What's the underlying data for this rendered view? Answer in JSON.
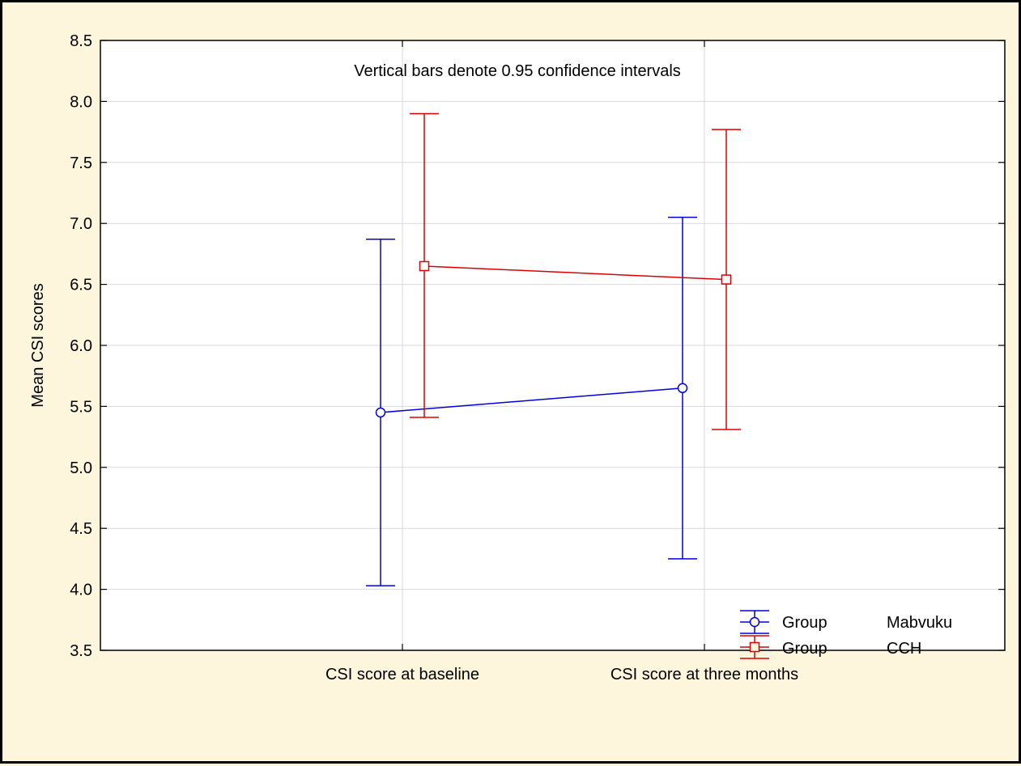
{
  "chart_data": {
    "type": "line",
    "title": "",
    "annotation": "Vertical bars denote 0.95 confidence intervals",
    "xlabel": "",
    "ylabel": "Mean CSI scores",
    "categories": [
      "CSI score at baseline",
      "CSI score at three months"
    ],
    "ylim": [
      3.5,
      8.5
    ],
    "yticks": [
      "3.5",
      "4.0",
      "4.5",
      "5.0",
      "5.5",
      "6.0",
      "6.5",
      "7.0",
      "7.5",
      "8.0",
      "8.5"
    ],
    "grid": true,
    "legend_position": "bottom-right",
    "series": [
      {
        "legend_label": "Group",
        "legend_value": "Mabvuku",
        "marker": "circle",
        "color": "#0000dd",
        "values": [
          5.45,
          5.65
        ],
        "ci_low": [
          4.03,
          4.25
        ],
        "ci_high": [
          6.87,
          7.05
        ]
      },
      {
        "legend_label": "Group",
        "legend_value": "CCH",
        "marker": "square",
        "color": "#dd0000",
        "values": [
          6.65,
          6.54
        ],
        "ci_low": [
          5.41,
          5.31
        ],
        "ci_high": [
          7.9,
          7.77
        ]
      }
    ]
  }
}
